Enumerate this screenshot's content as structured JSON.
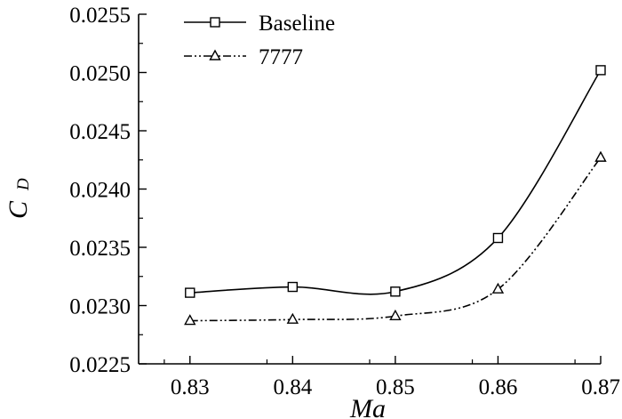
{
  "chart_data": {
    "type": "line",
    "xlabel": "Ma",
    "ylabel": "C",
    "ylabel_subscript": "D",
    "x": [
      0.83,
      0.84,
      0.85,
      0.86,
      0.87
    ],
    "xlim": [
      0.825,
      0.87
    ],
    "ylim": [
      0.0225,
      0.0255
    ],
    "xticks": [
      "0.83",
      "0.84",
      "0.85",
      "0.86",
      "0.87"
    ],
    "yticks": [
      "0.0225",
      "0.0230",
      "0.0235",
      "0.0240",
      "0.0245",
      "0.0250",
      "0.0255"
    ],
    "legend_position": "top-left",
    "grid": false,
    "series": [
      {
        "name": "Baseline",
        "marker": "square",
        "line_style": "solid",
        "values": [
          0.02311,
          0.02316,
          0.02312,
          0.02358,
          0.02502
        ]
      },
      {
        "name": "7777",
        "marker": "triangle",
        "line_style": "dash-dot-dot",
        "values": [
          0.02287,
          0.02288,
          0.02291,
          0.02314,
          0.02427
        ]
      }
    ]
  },
  "colors": {
    "line": "#000000",
    "background": "#ffffff"
  }
}
